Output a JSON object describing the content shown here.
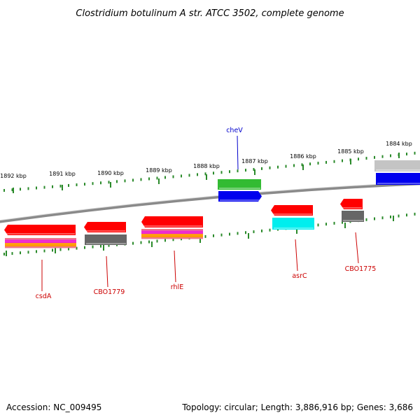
{
  "title": "Clostridium botulinum A str. ATCC 3502, complete genome",
  "footer": {
    "accession": "Accession: NC_009495",
    "summary": "Topology: circular; Length: 3,886,916 bp; Genes: 3,686"
  },
  "colors": {
    "backbone": "#8a8a8a",
    "tick": "#2a8a2a",
    "label_red": "#cc0000",
    "label_blue": "#0000cc",
    "red": "#ff0000",
    "blue": "#0000ee",
    "green": "#33bb33",
    "gray": "#666666",
    "lightgray": "#c4c4c4",
    "cyan": "#00eeee",
    "magenta": "#ee22cc",
    "orange": "#ff9900",
    "pink": "#ee7788"
  },
  "scale": {
    "ticks": [
      {
        "label": "1892 kbp"
      },
      {
        "label": "1891 kbp"
      },
      {
        "label": "1890 kbp"
      },
      {
        "label": "1889 kbp"
      },
      {
        "label": "1888 kbp"
      },
      {
        "label": "1887 kbp"
      },
      {
        "label": "1886 kbp"
      },
      {
        "label": "1885 kbp"
      },
      {
        "label": "1884 kbp"
      }
    ]
  },
  "genes": [
    {
      "label": "cheV",
      "color_key": "label_blue"
    },
    {
      "label": "csdA",
      "color_key": "label_red"
    },
    {
      "label": "CBO1779",
      "color_key": "label_red"
    },
    {
      "label": "rhlE",
      "color_key": "label_red"
    },
    {
      "label": "asrC",
      "color_key": "label_red"
    },
    {
      "label": "CBO1775",
      "color_key": "label_red"
    }
  ]
}
